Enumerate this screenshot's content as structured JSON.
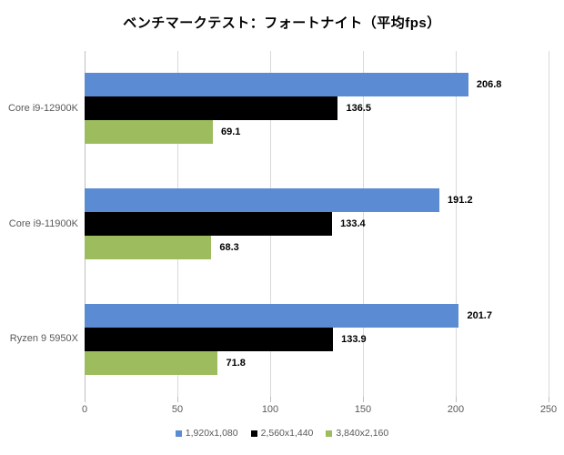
{
  "chart_data": {
    "type": "bar",
    "orientation": "horizontal",
    "title": "ベンチマークテスト：フォートナイト（平均fps）",
    "categories": [
      "Core i9-12900K",
      "Core i9-11900K",
      "Ryzen 9 5950X"
    ],
    "series": [
      {
        "name": "1,920x1,080",
        "color": "#5b8cd3",
        "values": [
          206.8,
          191.2,
          201.7
        ]
      },
      {
        "name": "2,560x1,440",
        "color": "#000000",
        "values": [
          136.5,
          133.4,
          133.9
        ]
      },
      {
        "name": "3,840x2,160",
        "color": "#9cbc5e",
        "values": [
          69.1,
          68.3,
          71.8
        ]
      }
    ],
    "xlim": [
      0,
      250
    ],
    "x_ticks": [
      "0",
      "50",
      "100",
      "150",
      "200",
      "250"
    ],
    "grid": true,
    "legend_position": "bottom",
    "value_labels_shown": true
  },
  "style_colors": {
    "gridline": "#d9d9d9",
    "axis_line": "#c0c0c0",
    "tick_mark": "#bfbfbf",
    "axis_text": "#595959",
    "value_label_text": "#000000",
    "background": "#ffffff"
  }
}
